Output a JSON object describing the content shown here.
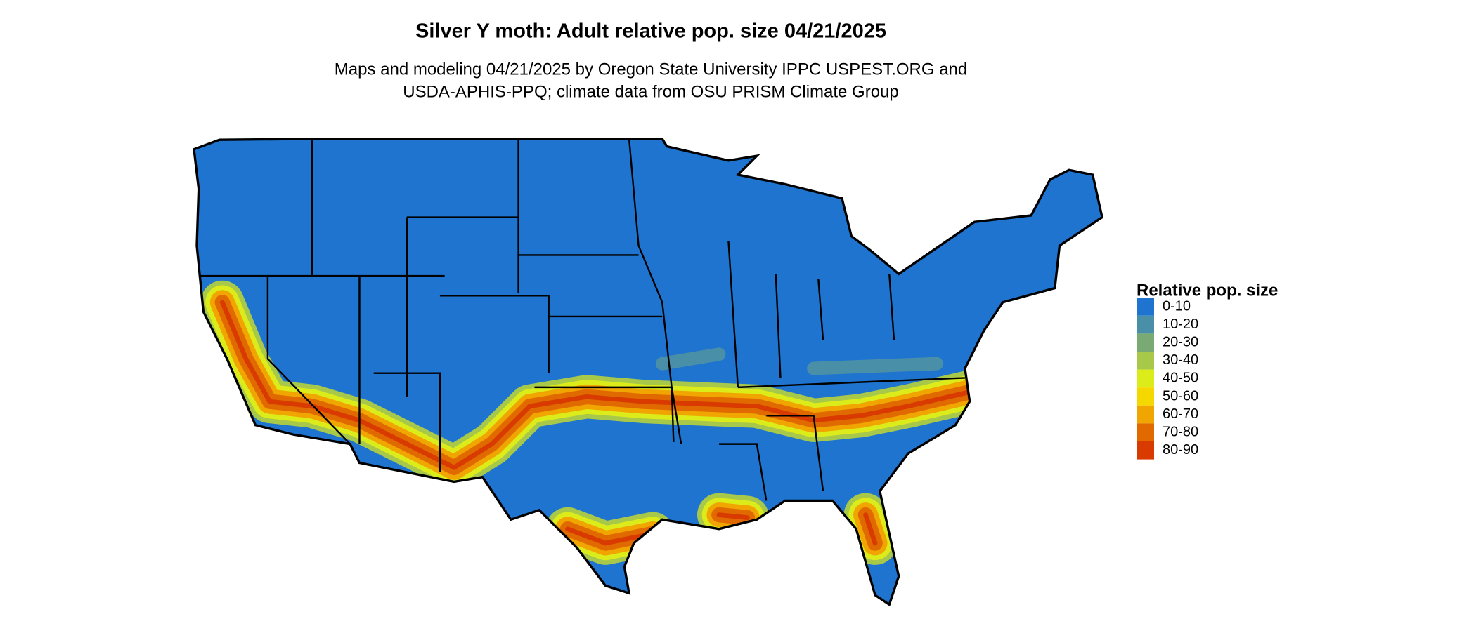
{
  "header": {
    "title": "Silver Y moth: Adult relative pop. size 04/21/2025",
    "subtitle": [
      "Maps and modeling 04/21/2025 by Oregon State University IPPC USPEST.ORG and",
      "USDA-APHIS-PPQ; climate data from OSU PRISM Climate Group"
    ]
  },
  "legend": {
    "title": "Relative pop. size",
    "items": [
      {
        "label": "0-10",
        "color": "#1f74cf"
      },
      {
        "label": "10-20",
        "color": "#4a8fa8"
      },
      {
        "label": "20-30",
        "color": "#7aaa74"
      },
      {
        "label": "30-40",
        "color": "#a8c84a"
      },
      {
        "label": "40-50",
        "color": "#dcec1a"
      },
      {
        "label": "50-60",
        "color": "#f5d800"
      },
      {
        "label": "60-70",
        "color": "#f0a500"
      },
      {
        "label": "70-80",
        "color": "#e06a00"
      },
      {
        "label": "80-90",
        "color": "#d83a00"
      }
    ]
  }
}
